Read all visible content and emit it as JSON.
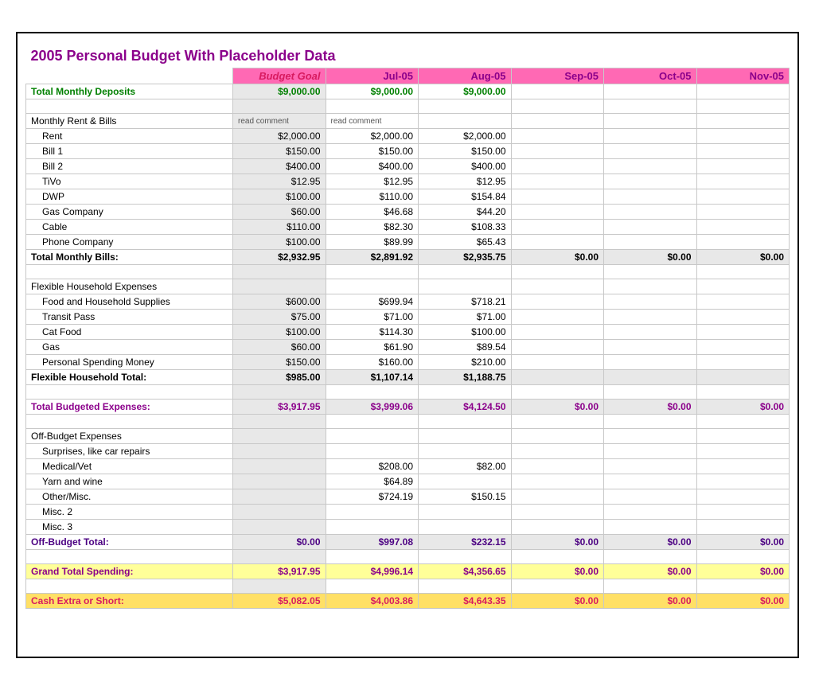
{
  "title": "2005 Personal Budget With Placeholder Data",
  "colors": {
    "title": "#8b008b",
    "header_bg": "#ff69b4",
    "deposits_text": "#008000",
    "section_gray": "#e8e8e8",
    "highlight_yellow": "#ffff99",
    "highlight_gold": "#ffe066",
    "cash_text": "#d81b60",
    "purple": "#8b008b",
    "darkpurple": "#4b0082",
    "border": "#c8c8c8"
  },
  "columns": [
    "Budget Goal",
    "Jul-05",
    "Aug-05",
    "Sep-05",
    "Oct-05",
    "Nov-05"
  ],
  "deposits": {
    "label": "Total Monthly Deposits",
    "vals": [
      "$9,000.00",
      "$9,000.00",
      "$9,000.00",
      "",
      "",
      ""
    ]
  },
  "bills": {
    "header": "Monthly Rent & Bills",
    "notes": [
      "read comment",
      "read comment",
      "",
      "",
      "",
      ""
    ],
    "rows": [
      {
        "label": "Rent",
        "vals": [
          "$2,000.00",
          "$2,000.00",
          "$2,000.00",
          "",
          "",
          ""
        ]
      },
      {
        "label": "Bill 1",
        "vals": [
          "$150.00",
          "$150.00",
          "$150.00",
          "",
          "",
          ""
        ]
      },
      {
        "label": "Bill 2",
        "vals": [
          "$400.00",
          "$400.00",
          "$400.00",
          "",
          "",
          ""
        ]
      },
      {
        "label": "TiVo",
        "vals": [
          "$12.95",
          "$12.95",
          "$12.95",
          "",
          "",
          ""
        ]
      },
      {
        "label": "DWP",
        "vals": [
          "$100.00",
          "$110.00",
          "$154.84",
          "",
          "",
          ""
        ]
      },
      {
        "label": "Gas Company",
        "vals": [
          "$60.00",
          "$46.68",
          "$44.20",
          "",
          "",
          ""
        ]
      },
      {
        "label": "Cable",
        "vals": [
          "$110.00",
          "$82.30",
          "$108.33",
          "",
          "",
          ""
        ]
      },
      {
        "label": "Phone Company",
        "vals": [
          "$100.00",
          "$89.99",
          "$65.43",
          "",
          "",
          ""
        ]
      }
    ],
    "total": {
      "label": "Total Monthly Bills:",
      "vals": [
        "$2,932.95",
        "$2,891.92",
        "$2,935.75",
        "$0.00",
        "$0.00",
        "$0.00"
      ]
    }
  },
  "flex": {
    "header": "Flexible Household Expenses",
    "rows": [
      {
        "label": "Food and Household Supplies",
        "vals": [
          "$600.00",
          "$699.94",
          "$718.21",
          "",
          "",
          ""
        ]
      },
      {
        "label": "Transit Pass",
        "vals": [
          "$75.00",
          "$71.00",
          "$71.00",
          "",
          "",
          ""
        ]
      },
      {
        "label": "Cat Food",
        "vals": [
          "$100.00",
          "$114.30",
          "$100.00",
          "",
          "",
          ""
        ]
      },
      {
        "label": "Gas",
        "vals": [
          "$60.00",
          "$61.90",
          "$89.54",
          "",
          "",
          ""
        ]
      },
      {
        "label": "Personal Spending Money",
        "vals": [
          "$150.00",
          "$160.00",
          "$210.00",
          "",
          "",
          ""
        ]
      }
    ],
    "total": {
      "label": "Flexible Household Total:",
      "vals": [
        "$985.00",
        "$1,107.14",
        "$1,188.75",
        "",
        "",
        ""
      ]
    }
  },
  "budgeted": {
    "label": "Total Budgeted Expenses:",
    "vals": [
      "$3,917.95",
      "$3,999.06",
      "$4,124.50",
      "$0.00",
      "$0.00",
      "$0.00"
    ]
  },
  "off": {
    "header": "Off-Budget Expenses",
    "rows": [
      {
        "label": "Surprises, like car repairs",
        "vals": [
          "",
          "",
          "",
          "",
          "",
          ""
        ]
      },
      {
        "label": "Medical/Vet",
        "vals": [
          "",
          "$208.00",
          "$82.00",
          "",
          "",
          ""
        ]
      },
      {
        "label": "Yarn and wine",
        "vals": [
          "",
          "$64.89",
          "",
          "",
          "",
          ""
        ]
      },
      {
        "label": "Other/Misc.",
        "vals": [
          "",
          "$724.19",
          "$150.15",
          "",
          "",
          ""
        ]
      },
      {
        "label": "Misc. 2",
        "vals": [
          "",
          "",
          "",
          "",
          "",
          ""
        ]
      },
      {
        "label": "Misc. 3",
        "vals": [
          "",
          "",
          "",
          "",
          "",
          ""
        ]
      }
    ],
    "total": {
      "label": "Off-Budget Total:",
      "vals": [
        "$0.00",
        "$997.08",
        "$232.15",
        "$0.00",
        "$0.00",
        "$0.00"
      ]
    }
  },
  "grand": {
    "label": "Grand Total Spending:",
    "vals": [
      "$3,917.95",
      "$4,996.14",
      "$4,356.65",
      "$0.00",
      "$0.00",
      "$0.00"
    ]
  },
  "cash": {
    "label": "Cash Extra or Short:",
    "vals": [
      "$5,082.05",
      "$4,003.86",
      "$4,643.35",
      "$0.00",
      "$0.00",
      "$0.00"
    ]
  }
}
